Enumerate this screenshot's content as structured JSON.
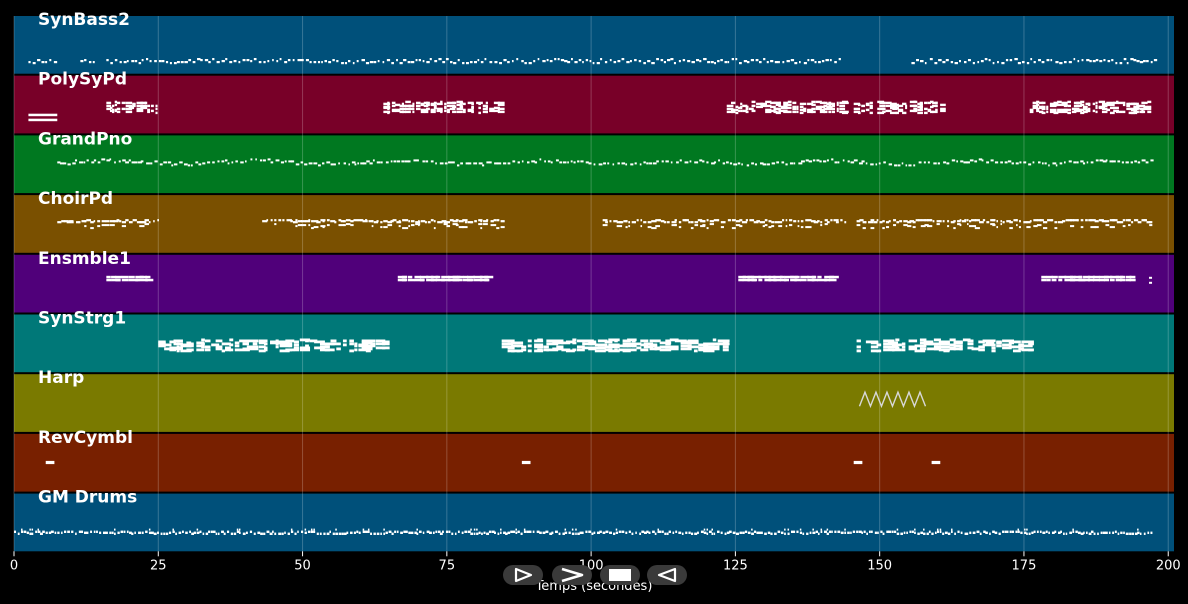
{
  "chart_data": {
    "type": "scatter",
    "xlabel": "Temps (secondes)",
    "xlim": [
      0,
      201
    ],
    "xticks": [
      0,
      25,
      50,
      75,
      100,
      125,
      150,
      175,
      200
    ],
    "grid": true,
    "tracks": [
      {
        "name": "SynBass2",
        "color": "#00507a",
        "pattern": "bass",
        "segments": [
          [
            2.5,
            7
          ],
          [
            11.5,
            14
          ],
          [
            16,
            143.5
          ],
          [
            155.5,
            198
          ]
        ]
      },
      {
        "name": "PolySyPd",
        "color": "#780028",
        "pattern": "chords",
        "segments": [
          [
            2.5,
            7.5
          ],
          [
            16,
            25
          ],
          [
            64,
            84.5
          ],
          [
            123.5,
            144
          ],
          [
            145.5,
            160.5
          ],
          [
            176,
            197
          ]
        ]
      },
      {
        "name": "GrandPno",
        "color": "#007820",
        "pattern": "melody",
        "segments": [
          [
            7.5,
            197
          ]
        ]
      },
      {
        "name": "ChoirPd",
        "color": "#7a5000",
        "pattern": "pad",
        "segments": [
          [
            7.5,
            25
          ],
          [
            43,
            84.5
          ],
          [
            102,
            144
          ],
          [
            146,
            197
          ]
        ]
      },
      {
        "name": "Ensmble1",
        "color": "#50007a",
        "pattern": "ensemble",
        "segments": [
          [
            16,
            23
          ],
          [
            66.5,
            82.5
          ],
          [
            125.5,
            141.5
          ],
          [
            178,
            194
          ],
          [
            196.5,
            197.5
          ]
        ]
      },
      {
        "name": "SynStrg1",
        "color": "#007878",
        "pattern": "strings",
        "segments": [
          [
            25,
            64
          ],
          [
            84.5,
            123.5
          ],
          [
            146,
            176
          ]
        ]
      },
      {
        "name": "Harp",
        "color": "#7a7a00",
        "pattern": "arpeggio",
        "segments": [
          [
            146.5,
            158
          ]
        ]
      },
      {
        "name": "RevCymbl",
        "color": "#782000",
        "pattern": "hits",
        "segments": [
          [
            5.5,
            7
          ],
          [
            88,
            89.5
          ],
          [
            145.5,
            147
          ],
          [
            159,
            160.5
          ]
        ]
      },
      {
        "name": "GM Drums",
        "color": "#00507a",
        "pattern": "drums",
        "segments": [
          [
            0,
            197.5
          ]
        ]
      }
    ]
  },
  "controls": {
    "buttons": [
      {
        "name": "play-button",
        "icon": "play-outline-icon"
      },
      {
        "name": "fast-forward-button",
        "icon": "chevron-right-icon"
      },
      {
        "name": "stop-button",
        "icon": "stop-icon"
      },
      {
        "name": "rewind-button",
        "icon": "play-reverse-icon"
      }
    ]
  }
}
